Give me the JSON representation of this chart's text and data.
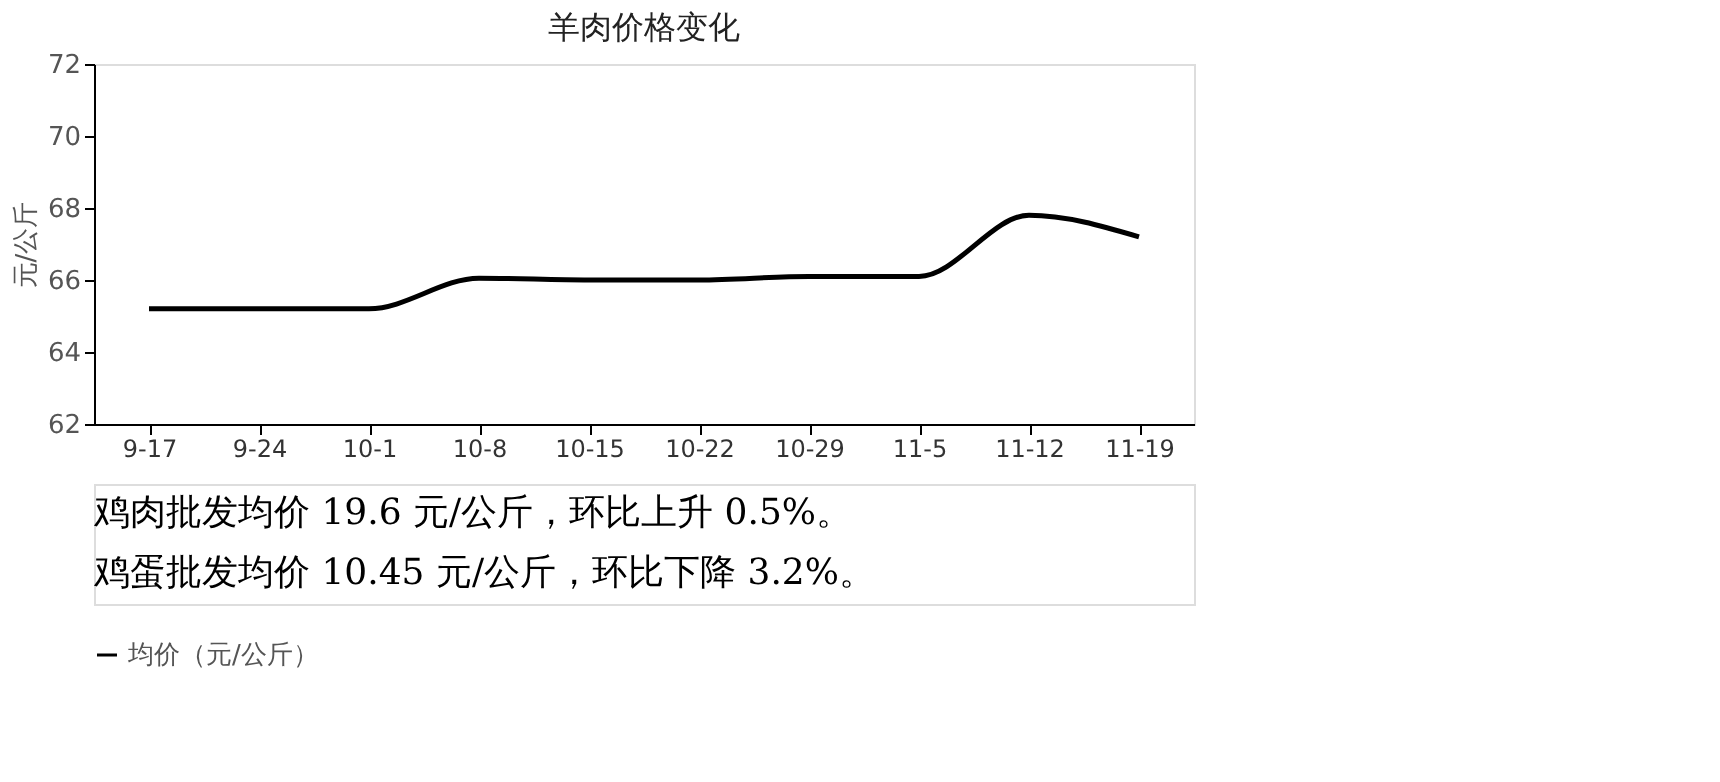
{
  "chart_data": {
    "type": "line",
    "title": "羊肉价格变化",
    "ylabel": "元/公斤",
    "categories": [
      "9-17",
      "9-24",
      "10-1",
      "10-8",
      "10-15",
      "10-22",
      "10-29",
      "11-5",
      "11-12",
      "11-19"
    ],
    "series": [
      {
        "name": "均价（元/公斤）",
        "color": "#000000",
        "values": [
          65.2,
          65.2,
          65.2,
          66.05,
          66.0,
          66.0,
          66.1,
          66.1,
          67.8,
          67.2
        ]
      }
    ],
    "ylim": [
      62,
      72
    ],
    "yticks": [
      62,
      64,
      66,
      68,
      70,
      72
    ],
    "grid": false,
    "legend": "bottom",
    "marker": "none",
    "line_style": "solid",
    "annotations": [
      "鸡肉批发均价 19.6 元/公斤，环比上升 0.5%。",
      "鸡蛋批发均价 10.45 元/公斤，环比下降 3.2%。"
    ]
  }
}
